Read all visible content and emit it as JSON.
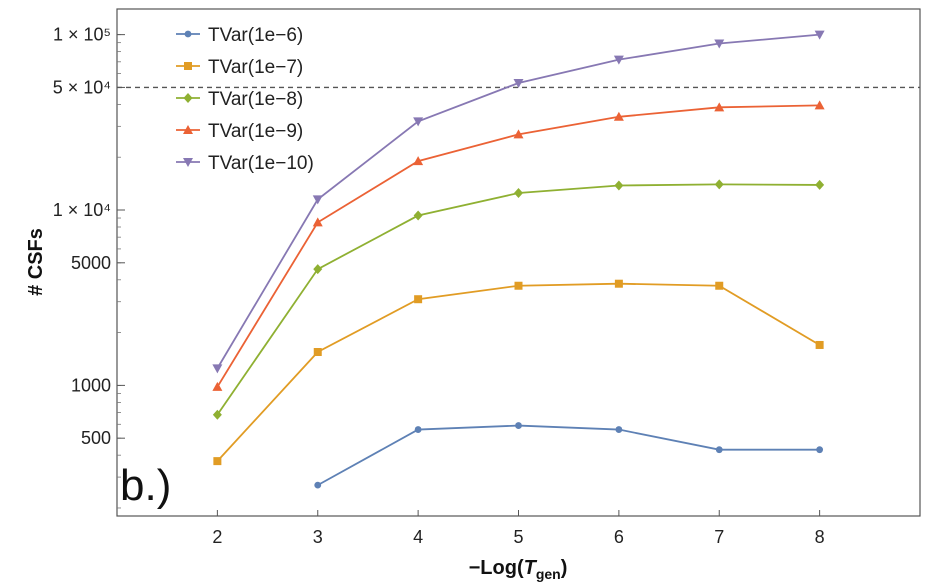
{
  "chart_data": {
    "type": "line",
    "xlabel_prefix": "−Log(",
    "xlabel_var": "T",
    "xlabel_sub": "gen",
    "xlabel_suffix": ")",
    "ylabel": "# CSFs",
    "panel_label": "b.)",
    "y_scale": "log",
    "xlim": [
      1,
      9
    ],
    "ylim": [
      180,
      140000
    ],
    "x_ticks": [
      2,
      3,
      4,
      5,
      6,
      7,
      8
    ],
    "y_ticks": [
      {
        "value": 500,
        "label": "500"
      },
      {
        "value": 1000,
        "label": "1000"
      },
      {
        "value": 5000,
        "label": "5000"
      },
      {
        "value": 10000,
        "label": "1 × 10⁴"
      },
      {
        "value": 50000,
        "label": "5 × 10⁴"
      },
      {
        "value": 100000,
        "label": "1 × 10⁵"
      }
    ],
    "reference_line": {
      "y": 50000,
      "style": "dashed"
    },
    "legend_position": "top-left",
    "grid": false,
    "series": [
      {
        "name": "TVar(1e−6)",
        "color": "#5e81b5",
        "marker": "circle",
        "x": [
          3,
          4,
          5,
          6,
          7,
          8
        ],
        "y": [
          270,
          560,
          590,
          560,
          430,
          430
        ]
      },
      {
        "name": "TVar(1e−7)",
        "color": "#e19c24",
        "marker": "square",
        "x": [
          2,
          3,
          4,
          5,
          6,
          7,
          8
        ],
        "y": [
          370,
          1550,
          3100,
          3700,
          3800,
          3700,
          1700
        ]
      },
      {
        "name": "TVar(1e−8)",
        "color": "#8fb032",
        "marker": "diamond",
        "x": [
          2,
          3,
          4,
          5,
          6,
          7,
          8
        ],
        "y": [
          680,
          4600,
          9300,
          12500,
          13800,
          14000,
          13900
        ]
      },
      {
        "name": "TVar(1e−9)",
        "color": "#eb6235",
        "marker": "triangle-up",
        "x": [
          2,
          3,
          4,
          5,
          6,
          7,
          8
        ],
        "y": [
          980,
          8500,
          19000,
          27000,
          34000,
          38500,
          39500
        ]
      },
      {
        "name": "TVar(1e−10)",
        "color": "#8778b3",
        "marker": "triangle-down",
        "x": [
          2,
          3,
          4,
          5,
          6,
          7,
          8
        ],
        "y": [
          1250,
          11500,
          32000,
          53000,
          72000,
          89000,
          100000
        ]
      }
    ]
  }
}
